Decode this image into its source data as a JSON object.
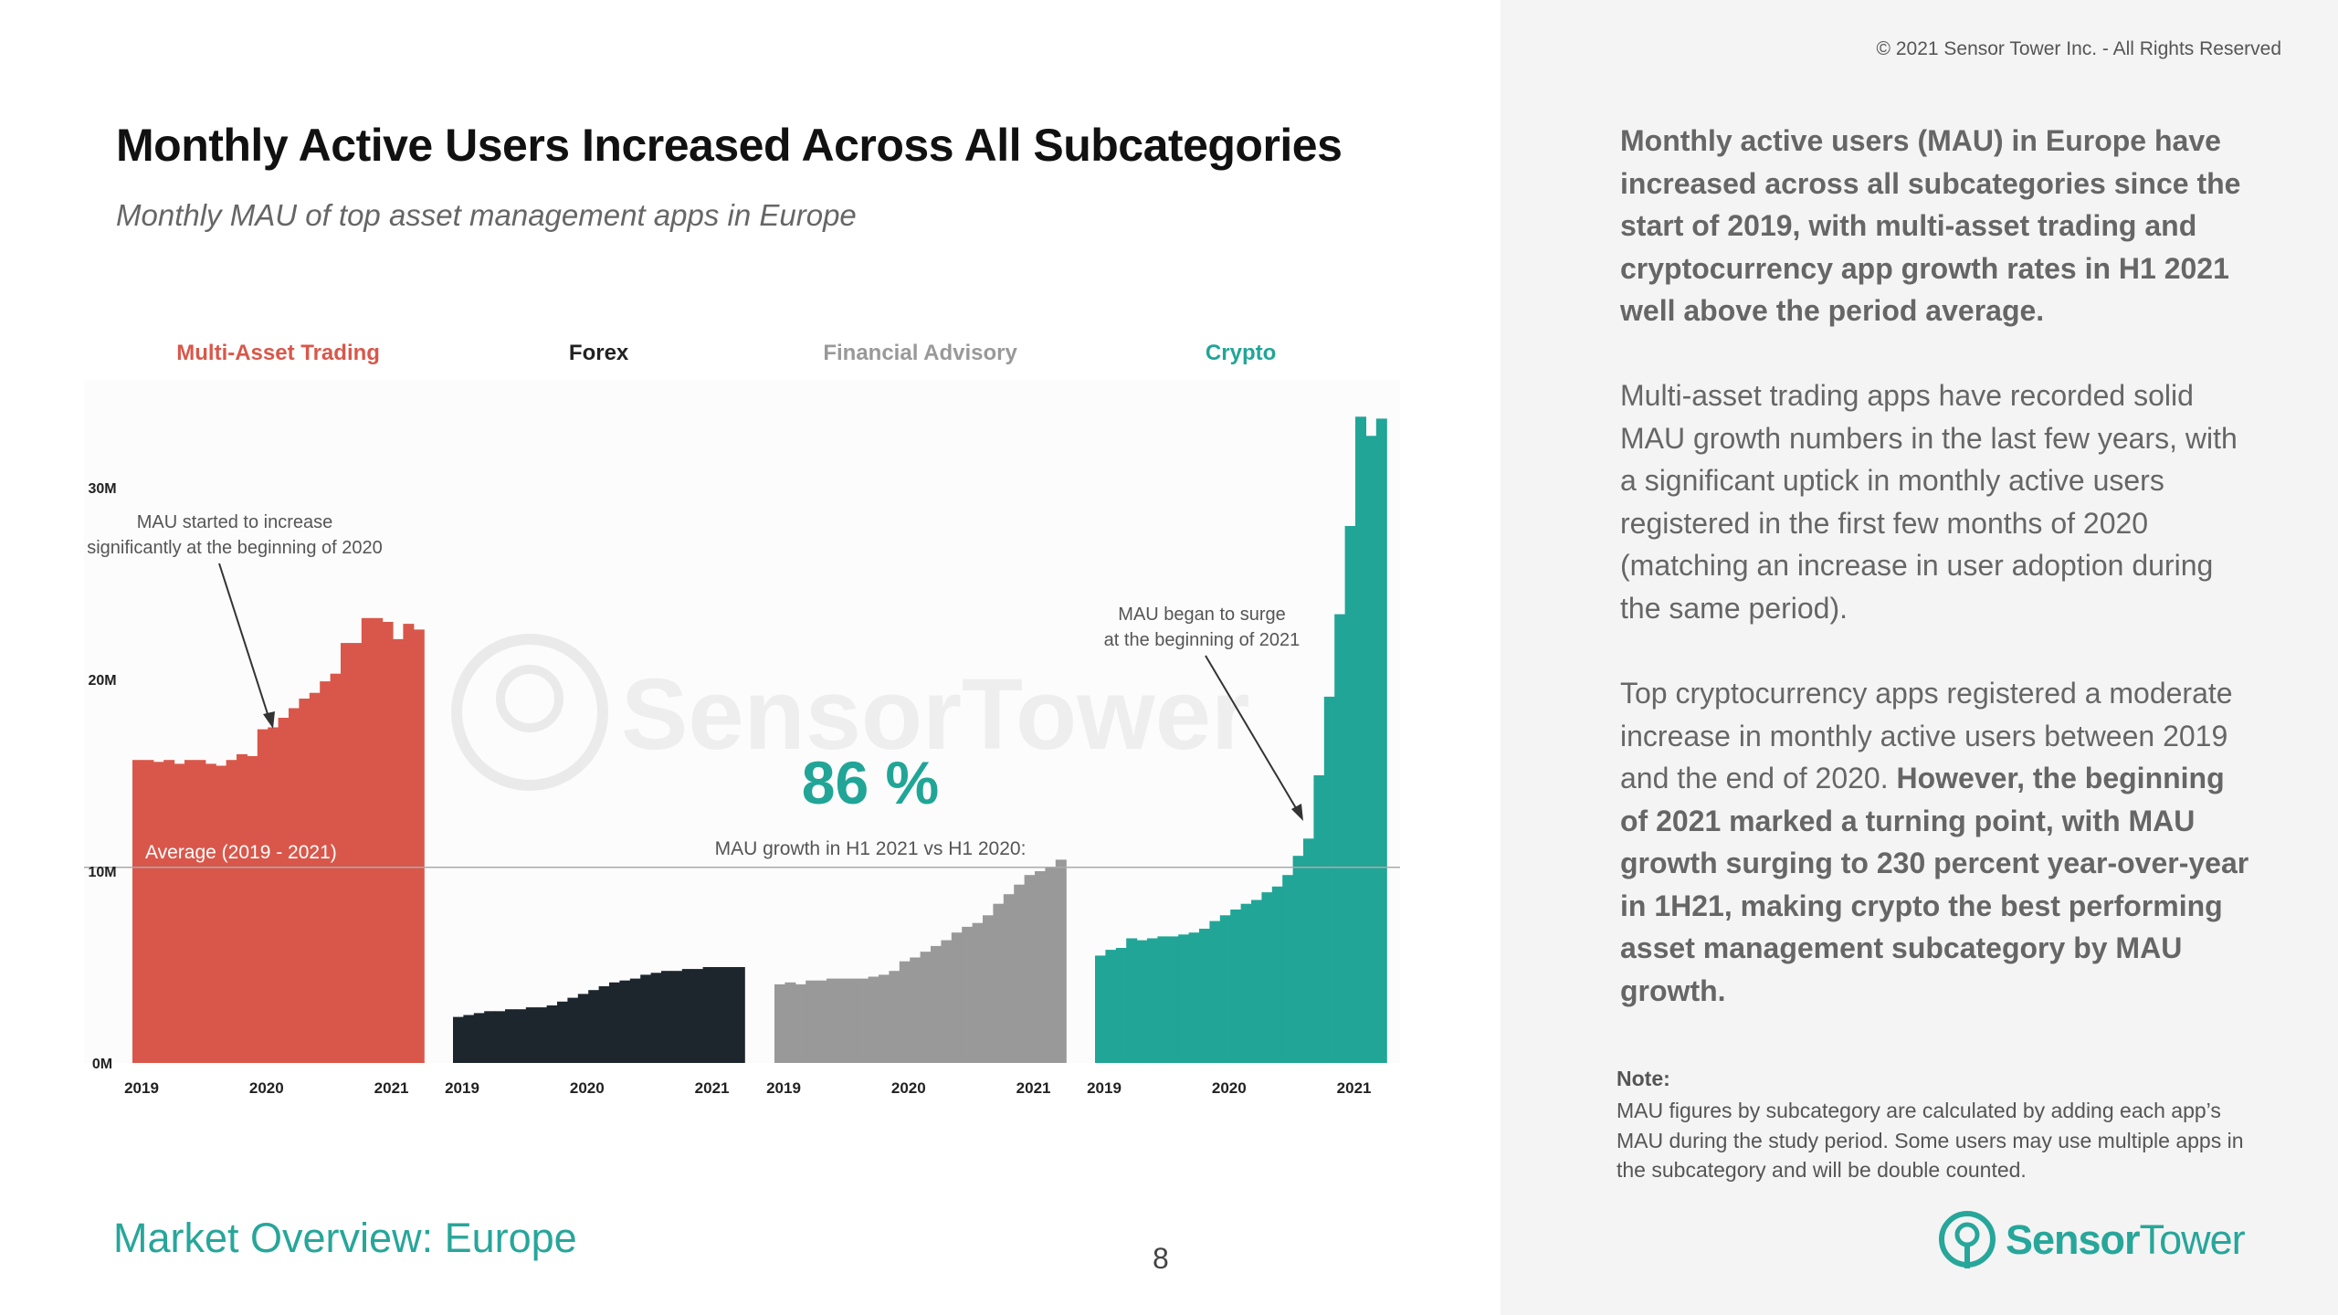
{
  "header": {
    "title": "Monthly Active Users Increased Across All Subcategories",
    "subtitle": "Monthly MAU of top asset management apps in Europe"
  },
  "footer": {
    "section": "Market Overview: Europe",
    "page_number": "8"
  },
  "sidebar": {
    "copyright": "© 2021 Sensor Tower Inc. - All Rights Reserved",
    "paragraph1": "Monthly active users (MAU) in Europe have increased across all subcategories since the start of 2019, with multi-asset trading and cryptocurrency app growth rates in H1 2021 well above the period average.",
    "paragraph2": "Multi-asset trading apps have recorded solid MAU growth numbers in the last few years, with a significant uptick in monthly active users registered in the first few months of 2020 (matching an increase in user adoption during the same period).",
    "paragraph3_normal": "Top cryptocurrency apps registered a moderate increase in monthly active users between 2019 and the end of 2020. ",
    "paragraph3_bold": "However, the beginning of 2021 marked a turning point, with MAU growth surging to 230 percent year-over-year in 1H21, making crypto the best performing asset management subcategory by MAU growth.",
    "note_title": "Note:",
    "note_body": "MAU figures by subcategory are calculated by adding each app’s MAU during the study period. Some users may use multiple apps in the subcategory and will be double counted.",
    "logo_bold": "Sensor",
    "logo_light": "Tower"
  },
  "colors": {
    "multi_asset": "#d9574a",
    "forex": "#1d262d",
    "financial_advisory": "#999999",
    "crypto": "#21a597",
    "accent": "#27a69a"
  },
  "chart_data": {
    "type": "bar",
    "title": "Monthly MAU of top asset management apps in Europe",
    "ylabel": "",
    "ylim": [
      0,
      35000000
    ],
    "yticks": [
      {
        "value": 0,
        "label": "0M"
      },
      {
        "value": 10000000,
        "label": "10M"
      },
      {
        "value": 20000000,
        "label": "20M"
      },
      {
        "value": 30000000,
        "label": "30M"
      }
    ],
    "xtick_labels": [
      "2019",
      "2020",
      "2021"
    ],
    "average_line": {
      "value": 10200000,
      "label": "Average (2019 - 2021)"
    },
    "watermark": "SensorTower",
    "highlight": {
      "value": "86 %",
      "label": "MAU growth in H1 2021  vs H1 2020:"
    },
    "annotations": [
      {
        "panel": 0,
        "text": [
          "MAU started to increase",
          "significantly at the beginning of 2020"
        ]
      },
      {
        "panel": 3,
        "text": [
          "MAU began to surge",
          "at the beginning of 2021"
        ]
      }
    ],
    "series": [
      {
        "name": "Multi-Asset Trading",
        "color": "#d9574a",
        "label_color": "#d9574a",
        "values": [
          15.8,
          15.8,
          15.7,
          15.8,
          15.6,
          15.8,
          15.8,
          15.6,
          15.5,
          15.8,
          16.1,
          16.0,
          17.4,
          17.5,
          18.0,
          18.5,
          19.0,
          19.3,
          19.9,
          20.3,
          21.9,
          21.9,
          23.2,
          23.2,
          23.0,
          22.1,
          22.9,
          22.6
        ]
      },
      {
        "name": "Forex",
        "color": "#1d262d",
        "label_color": "#222222",
        "values": [
          2.4,
          2.5,
          2.6,
          2.7,
          2.7,
          2.8,
          2.8,
          2.9,
          2.9,
          3.0,
          3.2,
          3.4,
          3.6,
          3.8,
          4.0,
          4.2,
          4.3,
          4.4,
          4.6,
          4.7,
          4.8,
          4.8,
          4.9,
          4.9,
          5.0,
          5.0,
          5.0,
          5.0
        ]
      },
      {
        "name": "Financial Advisory",
        "color": "#999999",
        "label_color": "#999999",
        "values": [
          4.1,
          4.2,
          4.1,
          4.3,
          4.3,
          4.4,
          4.4,
          4.4,
          4.4,
          4.5,
          4.6,
          4.8,
          5.3,
          5.5,
          5.8,
          6.1,
          6.4,
          6.8,
          7.1,
          7.3,
          7.7,
          8.3,
          8.8,
          9.3,
          9.8,
          10.0,
          10.2,
          10.6
        ]
      },
      {
        "name": "Crypto",
        "color": "#21a597",
        "label_color": "#21a597",
        "values": [
          5.6,
          5.9,
          6.0,
          6.5,
          6.4,
          6.5,
          6.6,
          6.6,
          6.7,
          6.8,
          7.0,
          7.4,
          7.7,
          8.0,
          8.3,
          8.5,
          8.9,
          9.2,
          9.8,
          10.8,
          11.7,
          15.0,
          19.1,
          23.4,
          28.0,
          33.7,
          32.7,
          33.6
        ]
      }
    ]
  }
}
